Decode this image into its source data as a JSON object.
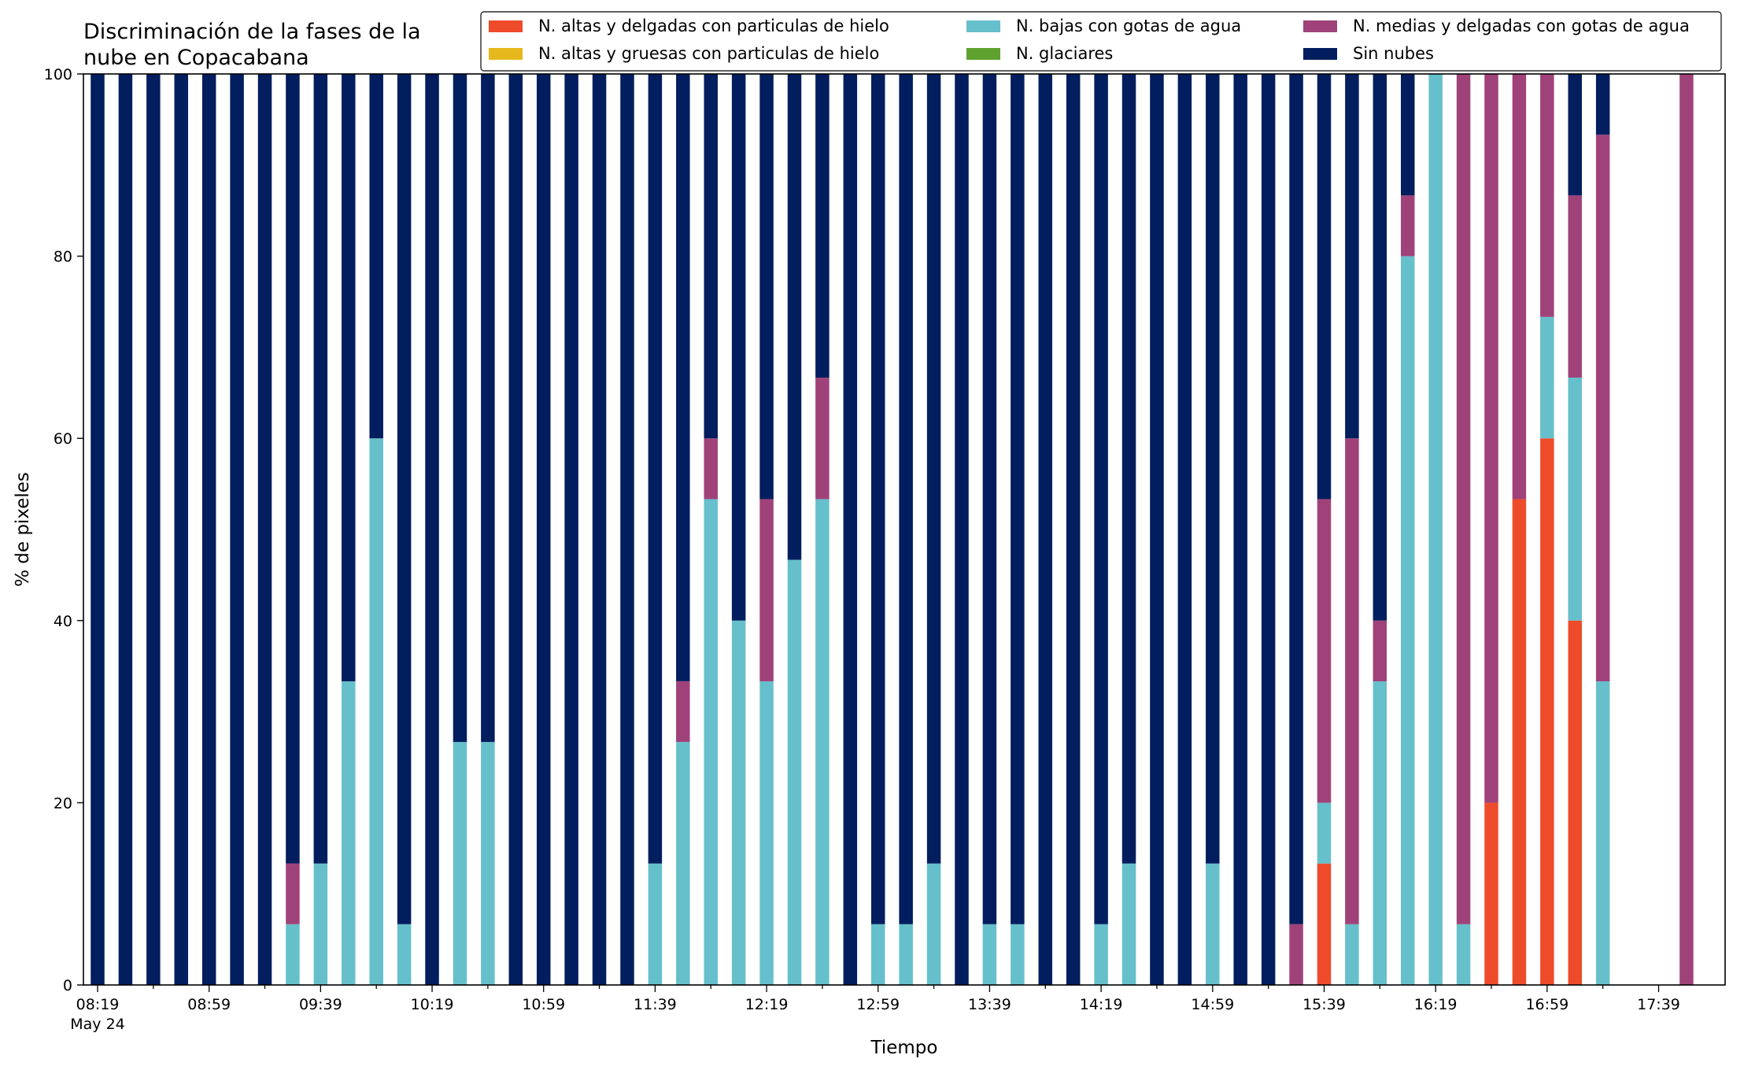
{
  "chart_data": {
    "type": "bar",
    "stacked": true,
    "title_lines": [
      "Discriminación de la fases de la",
      "nube en Copacabana"
    ],
    "xlabel": "Tiempo",
    "ylabel": "% de pixeles",
    "ylim": [
      0,
      100
    ],
    "yticks": [
      0,
      20,
      40,
      60,
      80,
      100
    ],
    "grid": false,
    "legend_position": "top-right",
    "time_start": "08:19",
    "interval_minutes": 10,
    "xtick_labels": [
      "08:19",
      "08:59",
      "09:39",
      "10:19",
      "10:59",
      "11:39",
      "12:19",
      "12:59",
      "13:39",
      "14:19",
      "14:59",
      "15:39",
      "16:19",
      "16:59",
      "17:39"
    ],
    "xtick_date": "May 24",
    "categories": [
      "08:19",
      "08:29",
      "08:39",
      "08:49",
      "08:59",
      "09:09",
      "09:19",
      "09:29",
      "09:39",
      "09:49",
      "09:59",
      "10:09",
      "10:19",
      "10:29",
      "10:39",
      "10:49",
      "10:59",
      "11:09",
      "11:19",
      "11:29",
      "11:39",
      "11:49",
      "11:59",
      "12:09",
      "12:19",
      "12:29",
      "12:39",
      "12:49",
      "12:59",
      "13:09",
      "13:19",
      "13:29",
      "13:39",
      "13:49",
      "13:59",
      "14:09",
      "14:19",
      "14:29",
      "14:39",
      "14:49",
      "14:59",
      "15:09",
      "15:19",
      "15:29",
      "15:39",
      "15:49",
      "15:59",
      "16:09",
      "16:19",
      "16:29",
      "16:39",
      "16:49",
      "16:59",
      "17:09",
      "17:19",
      "17:29",
      "17:39",
      "17:49"
    ],
    "series": [
      {
        "name": "N. altas y delgadas con particulas de hielo",
        "color": "#EE4B2B",
        "values": [
          0,
          0,
          0,
          0,
          0,
          0,
          0,
          0,
          0,
          0,
          0,
          0,
          0,
          0,
          0,
          0,
          0,
          0,
          0,
          0,
          0,
          0,
          0,
          0,
          0,
          0,
          0,
          0,
          0,
          0,
          0,
          0,
          0,
          0,
          0,
          0,
          0,
          0,
          0,
          0,
          0,
          0,
          0,
          0,
          13.33,
          0,
          0,
          0,
          0,
          0,
          20,
          53.33,
          60,
          40,
          0,
          0,
          0,
          0
        ]
      },
      {
        "name": "N. altas y gruesas con particulas de hielo",
        "color": "#E6B81E",
        "values": [
          0,
          0,
          0,
          0,
          0,
          0,
          0,
          0,
          0,
          0,
          0,
          0,
          0,
          0,
          0,
          0,
          0,
          0,
          0,
          0,
          0,
          0,
          0,
          0,
          0,
          0,
          0,
          0,
          0,
          0,
          0,
          0,
          0,
          0,
          0,
          0,
          0,
          0,
          0,
          0,
          0,
          0,
          0,
          0,
          0,
          0,
          0,
          0,
          0,
          0,
          0,
          0,
          0,
          0,
          0,
          0,
          0,
          0
        ]
      },
      {
        "name": "N. bajas con gotas de agua",
        "color": "#66C0CB",
        "values": [
          0,
          0,
          0,
          0,
          0,
          0,
          0,
          6.67,
          13.33,
          33.33,
          60,
          6.67,
          0,
          26.67,
          26.67,
          0,
          0,
          0,
          0,
          0,
          13.33,
          26.67,
          53.33,
          40,
          33.33,
          46.67,
          53.33,
          0,
          6.67,
          6.67,
          13.33,
          0,
          6.67,
          6.67,
          0,
          0,
          6.67,
          13.33,
          0,
          0,
          13.33,
          0,
          0,
          0,
          6.67,
          6.67,
          33.33,
          80,
          100,
          6.67,
          0,
          0,
          13.33,
          26.67,
          33.33,
          0,
          0,
          0
        ]
      },
      {
        "name": "N. glaciares",
        "color": "#5FA12F",
        "values": [
          0,
          0,
          0,
          0,
          0,
          0,
          0,
          0,
          0,
          0,
          0,
          0,
          0,
          0,
          0,
          0,
          0,
          0,
          0,
          0,
          0,
          0,
          0,
          0,
          0,
          0,
          0,
          0,
          0,
          0,
          0,
          0,
          0,
          0,
          0,
          0,
          0,
          0,
          0,
          0,
          0,
          0,
          0,
          0,
          0,
          0,
          0,
          0,
          0,
          0,
          0,
          0,
          0,
          0,
          0,
          0,
          0,
          0
        ]
      },
      {
        "name": "N. medias y delgadas con gotas de agua",
        "color": "#A0427A",
        "values": [
          0,
          0,
          0,
          0,
          0,
          0,
          0,
          6.67,
          0,
          0,
          0,
          0,
          0,
          0,
          0,
          0,
          0,
          0,
          0,
          0,
          0,
          6.67,
          6.67,
          0,
          20,
          0,
          13.33,
          0,
          0,
          0,
          0,
          0,
          0,
          0,
          0,
          0,
          0,
          0,
          0,
          0,
          0,
          0,
          0,
          6.67,
          33.33,
          53.33,
          6.67,
          6.67,
          0,
          93.33,
          80,
          46.67,
          26.67,
          20,
          60,
          0,
          0,
          100
        ]
      },
      {
        "name": "Sin nubes",
        "color": "#021E5E",
        "values": [
          100,
          100,
          100,
          100,
          100,
          100,
          100,
          86.67,
          86.67,
          66.67,
          40,
          93.33,
          100,
          73.33,
          73.33,
          100,
          100,
          100,
          100,
          100,
          86.67,
          66.67,
          40,
          60,
          46.67,
          53.33,
          33.33,
          100,
          93.33,
          93.33,
          86.67,
          100,
          93.33,
          93.33,
          100,
          100,
          93.33,
          86.67,
          100,
          100,
          86.67,
          100,
          100,
          93.33,
          46.67,
          40,
          60,
          13.33,
          0,
          0,
          0,
          0,
          0,
          13.33,
          6.67,
          0,
          0,
          0
        ]
      }
    ]
  }
}
